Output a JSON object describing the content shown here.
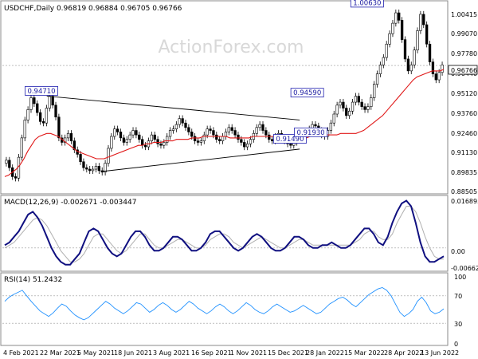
{
  "chart_data": [
    {
      "type": "candlestick",
      "title": "USDCHF,Daily  0.96819 0.96884 0.96705 0.96766",
      "watermark": "ActionForex.com",
      "ylim": [
        0.8825,
        1.01
      ],
      "yticks": [
        "1.00415",
        "0.99070",
        "0.97780",
        "0.96440",
        "0.95120",
        "0.93760",
        "0.92460",
        "0.91130",
        "0.89835",
        "0.88505"
      ],
      "current_price": "0.96766",
      "price_series": [
        0.904,
        0.899,
        0.893,
        0.892,
        0.906,
        0.919,
        0.931,
        0.938,
        0.946,
        0.942,
        0.936,
        0.93,
        0.929,
        0.939,
        0.947,
        0.941,
        0.933,
        0.919,
        0.916,
        0.919,
        0.922,
        0.917,
        0.911,
        0.908,
        0.903,
        0.899,
        0.898,
        0.897,
        0.898,
        0.9,
        0.897,
        0.896,
        0.902,
        0.912,
        0.92,
        0.925,
        0.923,
        0.919,
        0.916,
        0.918,
        0.921,
        0.924,
        0.921,
        0.918,
        0.914,
        0.913,
        0.917,
        0.921,
        0.918,
        0.915,
        0.914,
        0.916,
        0.92,
        0.924,
        0.925,
        0.928,
        0.932,
        0.929,
        0.926,
        0.923,
        0.92,
        0.917,
        0.916,
        0.917,
        0.921,
        0.925,
        0.924,
        0.921,
        0.918,
        0.917,
        0.92,
        0.923,
        0.926,
        0.924,
        0.921,
        0.918,
        0.916,
        0.913,
        0.915,
        0.918,
        0.922,
        0.926,
        0.928,
        0.924,
        0.921,
        0.918,
        0.917,
        0.92,
        0.922,
        0.919,
        0.917,
        0.915,
        0.914,
        0.916,
        0.918,
        0.921,
        0.923,
        0.922,
        0.925,
        0.928,
        0.927,
        0.924,
        0.921,
        0.92,
        0.924,
        0.929,
        0.935,
        0.941,
        0.943,
        0.939,
        0.934,
        0.937,
        0.943,
        0.947,
        0.943,
        0.94,
        0.938,
        0.94,
        0.946,
        0.955,
        0.962,
        0.968,
        0.973,
        0.982,
        0.989,
        0.996,
        1.003,
        0.998,
        0.985,
        0.972,
        0.964,
        0.968,
        0.978,
        0.991,
        1.002,
        0.995,
        0.982,
        0.97,
        0.962,
        0.958,
        0.963,
        0.968
      ],
      "ma_series": [
        0.893,
        0.894,
        0.896,
        0.898,
        0.901,
        0.905,
        0.91,
        0.914,
        0.918,
        0.92,
        0.921,
        0.922,
        0.922,
        0.921,
        0.92,
        0.918,
        0.916,
        0.914,
        0.912,
        0.91,
        0.909,
        0.908,
        0.907,
        0.906,
        0.905,
        0.905,
        0.905,
        0.906,
        0.907,
        0.908,
        0.909,
        0.91,
        0.911,
        0.912,
        0.913,
        0.914,
        0.914,
        0.915,
        0.915,
        0.916,
        0.916,
        0.916,
        0.917,
        0.917,
        0.917,
        0.918,
        0.918,
        0.918,
        0.918,
        0.919,
        0.919,
        0.919,
        0.92,
        0.92,
        0.92,
        0.92,
        0.92,
        0.92,
        0.92,
        0.919,
        0.919,
        0.919,
        0.919,
        0.919,
        0.919,
        0.92,
        0.92,
        0.92,
        0.92,
        0.92,
        0.92,
        0.92,
        0.92,
        0.92,
        0.92,
        0.92,
        0.919,
        0.919,
        0.919,
        0.919,
        0.92,
        0.92,
        0.92,
        0.921,
        0.921,
        0.921,
        0.921,
        0.921,
        0.922,
        0.922,
        0.922,
        0.922,
        0.922,
        0.923,
        0.924,
        0.926,
        0.928,
        0.93,
        0.932,
        0.934,
        0.937,
        0.94,
        0.943,
        0.946,
        0.949,
        0.952,
        0.955,
        0.958,
        0.96,
        0.961,
        0.962,
        0.963,
        0.964,
        0.964,
        0.964,
        0.965
      ],
      "annotations": [
        {
          "label": "1.00630",
          "x": 0.822,
          "y": 1.0063
        },
        {
          "label": "0.94710",
          "x": 0.088,
          "y": 0.9471
        },
        {
          "label": "0.94590",
          "x": 0.687,
          "y": 0.9459
        },
        {
          "label": "0.91490",
          "x": 0.648,
          "y": 0.9149
        },
        {
          "label": "0.91930",
          "x": 0.695,
          "y": 0.9193
        }
      ],
      "trendlines": [
        {
          "from": [
            0.1,
            0.9471
          ],
          "to": [
            0.67,
            0.931
          ]
        },
        {
          "from": [
            0.225,
            0.8965
          ],
          "to": [
            0.67,
            0.9115
          ]
        }
      ]
    },
    {
      "type": "line",
      "title": "MACD(12,26,9) -0.002671 -0.003447",
      "ylim": [
        -0.0078,
        0.018
      ],
      "yticks": [
        "0.016895",
        "0.00",
        "-0.006629"
      ],
      "macd": [
        0.001,
        0.002,
        0.004,
        0.006,
        0.009,
        0.012,
        0.013,
        0.011,
        0.008,
        0.004,
        0.0,
        -0.003,
        -0.005,
        -0.006,
        -0.006,
        -0.004,
        -0.002,
        0.002,
        0.006,
        0.007,
        0.006,
        0.003,
        0.0,
        -0.002,
        -0.003,
        -0.002,
        0.001,
        0.004,
        0.006,
        0.006,
        0.004,
        0.001,
        -0.001,
        -0.001,
        0.0,
        0.002,
        0.004,
        0.004,
        0.003,
        0.001,
        -0.001,
        -0.001,
        0.0,
        0.002,
        0.005,
        0.006,
        0.006,
        0.004,
        0.002,
        0.0,
        -0.001,
        0.0,
        0.002,
        0.004,
        0.005,
        0.004,
        0.002,
        0.0,
        -0.001,
        -0.001,
        0.0,
        0.002,
        0.004,
        0.004,
        0.003,
        0.001,
        0.0,
        0.0,
        0.001,
        0.001,
        0.002,
        0.001,
        0.0,
        0.0,
        0.001,
        0.003,
        0.005,
        0.007,
        0.007,
        0.005,
        0.002,
        0.001,
        0.004,
        0.009,
        0.013,
        0.016,
        0.017,
        0.015,
        0.009,
        0.002,
        -0.003,
        -0.005,
        -0.005,
        -0.004,
        -0.003
      ],
      "signal": [
        0.0,
        0.001,
        0.002,
        0.004,
        0.006,
        0.008,
        0.01,
        0.011,
        0.01,
        0.008,
        0.005,
        0.002,
        -0.001,
        -0.003,
        -0.005,
        -0.005,
        -0.004,
        -0.002,
        0.001,
        0.004,
        0.005,
        0.005,
        0.003,
        0.001,
        -0.001,
        -0.002,
        -0.001,
        0.001,
        0.003,
        0.005,
        0.005,
        0.003,
        0.001,
        0.0,
        0.0,
        0.001,
        0.002,
        0.003,
        0.003,
        0.002,
        0.001,
        0.0,
        0.0,
        0.001,
        0.003,
        0.004,
        0.005,
        0.005,
        0.004,
        0.002,
        0.001,
        0.0,
        0.001,
        0.002,
        0.003,
        0.004,
        0.003,
        0.002,
        0.001,
        0.0,
        0.0,
        0.001,
        0.002,
        0.003,
        0.003,
        0.002,
        0.001,
        0.001,
        0.001,
        0.001,
        0.001,
        0.001,
        0.001,
        0.001,
        0.001,
        0.002,
        0.003,
        0.005,
        0.006,
        0.006,
        0.004,
        0.003,
        0.003,
        0.005,
        0.009,
        0.012,
        0.015,
        0.015,
        0.013,
        0.009,
        0.004,
        0.0,
        -0.003,
        -0.004,
        -0.004
      ]
    },
    {
      "type": "line",
      "title": "RSI(14) 51.2432",
      "ylim": [
        0,
        100
      ],
      "yticks": [
        "100",
        "70",
        "30",
        "0"
      ],
      "rsi": [
        62,
        68,
        72,
        75,
        78,
        70,
        62,
        55,
        48,
        44,
        40,
        45,
        52,
        58,
        55,
        48,
        42,
        38,
        35,
        38,
        44,
        50,
        56,
        62,
        58,
        52,
        48,
        44,
        48,
        54,
        60,
        58,
        52,
        46,
        50,
        56,
        60,
        56,
        50,
        46,
        50,
        56,
        62,
        58,
        52,
        48,
        44,
        48,
        54,
        58,
        54,
        48,
        44,
        48,
        54,
        60,
        56,
        50,
        46,
        44,
        48,
        54,
        58,
        54,
        50,
        46,
        48,
        52,
        56,
        52,
        48,
        44,
        46,
        52,
        58,
        62,
        66,
        68,
        64,
        58,
        54,
        60,
        66,
        72,
        76,
        80,
        82,
        78,
        70,
        58,
        46,
        40,
        44,
        50,
        62,
        68,
        60,
        48,
        44,
        46,
        51
      ],
      "levels": [
        70,
        30
      ]
    }
  ],
  "x_axis_labels": [
    "4 Feb 2021",
    "22 Mar 2021",
    "5 May 2021",
    "18 Jun 2021",
    "3 Aug 2021",
    "16 Sep 2021",
    "1 Nov 2021",
    "15 Dec 2021",
    "28 Jan 2022",
    "15 Mar 2022",
    "28 Apr 2022",
    "13 Jun 2022"
  ]
}
